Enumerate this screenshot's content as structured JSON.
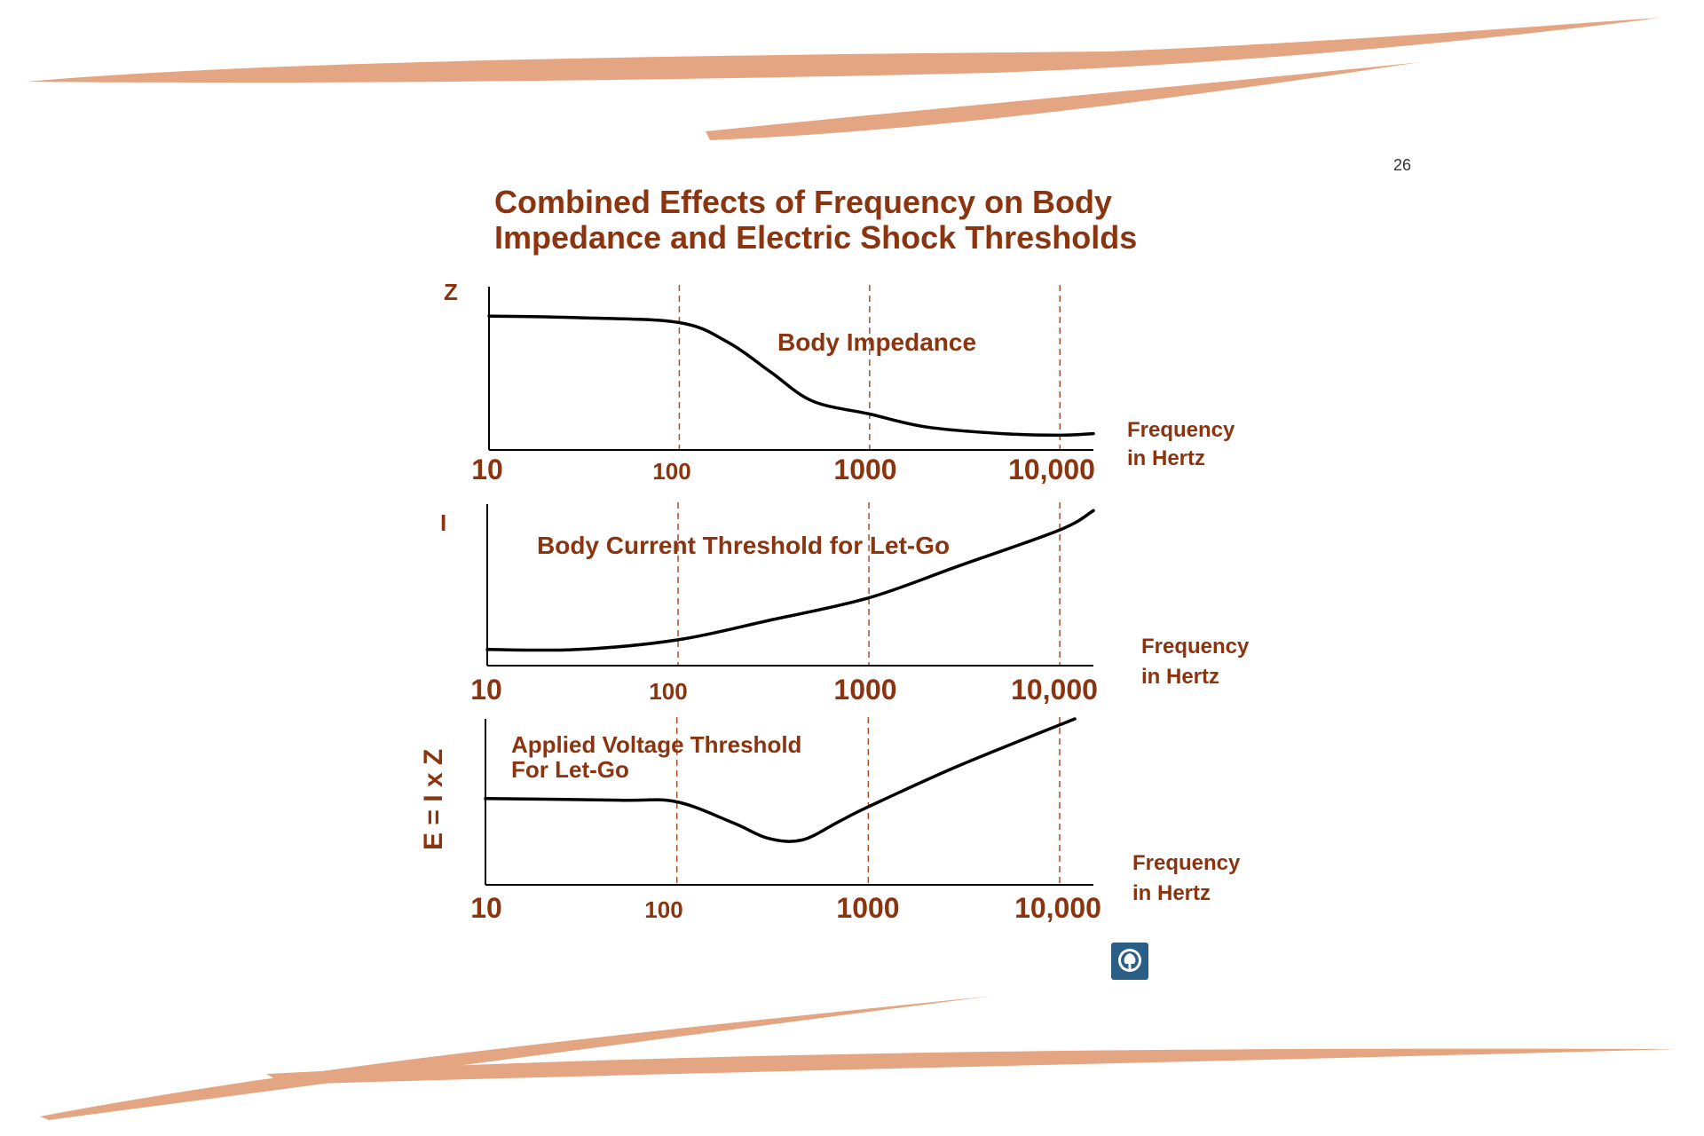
{
  "slide_number": "26",
  "title_lines": [
    "Combined Effects of Frequency on Body",
    "Impedance and Electric Shock Thresholds"
  ],
  "colors": {
    "title": "#8B3410",
    "brush": "#E4A582",
    "curve": "#000000",
    "gridline": "#A0522D",
    "logo": "#2A5E86"
  },
  "logo_icon": "tree-emblem-icon",
  "chart_data": [
    {
      "type": "line",
      "ylabel": "Z",
      "xlabel": [
        "Frequency",
        "in Hertz"
      ],
      "xscale": "log",
      "xlim": [
        10,
        15000
      ],
      "ylim": [
        0,
        1
      ],
      "x_ticks": [
        "10",
        "100",
        "1000",
        "10,000"
      ],
      "grid": "vertical dashed at 100, 1000, 10,000",
      "annotation": "Body Impedance",
      "series": [
        {
          "x": [
            10,
            30,
            100,
            180,
            300,
            500,
            1000,
            2000,
            5000,
            10000,
            15000
          ],
          "y": [
            0.82,
            0.81,
            0.78,
            0.66,
            0.48,
            0.3,
            0.22,
            0.14,
            0.1,
            0.09,
            0.1
          ]
        }
      ]
    },
    {
      "type": "line",
      "ylabel": "I",
      "xlabel": [
        "Frequency",
        "in Hertz"
      ],
      "xscale": "log",
      "xlim": [
        10,
        15000
      ],
      "ylim": [
        0,
        1
      ],
      "x_ticks": [
        "10",
        "100",
        "1000",
        "10,000"
      ],
      "grid": "vertical dashed at 100, 1000, 10,000",
      "annotation": "Body Current Threshold for Let-Go",
      "series": [
        {
          "x": [
            10,
            30,
            100,
            300,
            1000,
            3000,
            10000,
            15000
          ],
          "y": [
            0.1,
            0.1,
            0.16,
            0.28,
            0.42,
            0.62,
            0.84,
            0.96
          ]
        }
      ]
    },
    {
      "type": "line",
      "ylabel": "E = I x Z",
      "xlabel": [
        "Frequency",
        "in Hertz"
      ],
      "xscale": "log",
      "xlim": [
        10,
        15000
      ],
      "ylim": [
        0,
        1
      ],
      "x_ticks": [
        "10",
        "100",
        "1000",
        "10,000"
      ],
      "grid": "vertical dashed at 100, 1000, 10,000",
      "annotation": [
        "Applied Voltage  Threshold",
        "For Let-Go"
      ],
      "series": [
        {
          "x": [
            10,
            50,
            100,
            200,
            300,
            450,
            700,
            1000,
            3000,
            12000
          ],
          "y": [
            0.52,
            0.51,
            0.5,
            0.37,
            0.28,
            0.27,
            0.38,
            0.47,
            0.72,
            1.0
          ]
        }
      ]
    }
  ]
}
